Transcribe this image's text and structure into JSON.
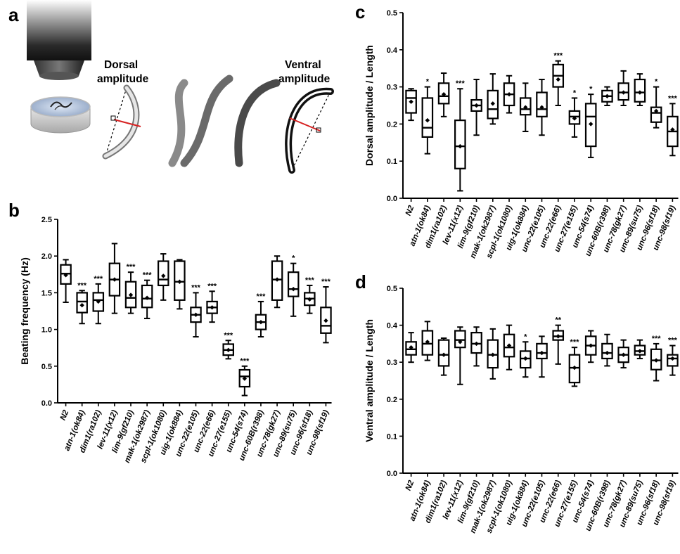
{
  "figure": {
    "panel_labels": [
      "a",
      "b",
      "c",
      "d"
    ],
    "illustration": {
      "dorsal_label_line1": "Dorsal",
      "dorsal_label_line2": "amplitude",
      "ventral_label_line1": "Ventral",
      "ventral_label_line2": "amplitude"
    }
  },
  "chart_data": [
    {
      "panel": "b",
      "type": "box",
      "ylabel": "Beating frequency (Hz)",
      "ylim": [
        0,
        2.5
      ],
      "yticks": [
        0.0,
        0.5,
        1.0,
        1.5,
        2.0,
        2.5
      ],
      "categories": [
        "N2",
        "atn-1(ok84)",
        "dim1(ra102)",
        "lev-11(x12)",
        "lim-9(gf210)",
        "mak-1(ok2987)",
        "scpl-1(ok1080)",
        "uig-1(ok884)",
        "unc-22(e105)",
        "unc-22(e66)",
        "unc-27(e155)",
        "unc-54(s74)",
        "unc-60B(r398)",
        "unc-78(gk27)",
        "unc-89(su75)",
        "unc-96(sf18)",
        "unc-98(sf19)"
      ],
      "boxes": [
        {
          "min": 1.37,
          "q1": 1.62,
          "median": 1.76,
          "q3": 1.88,
          "max": 1.95,
          "mean": 1.74,
          "sig": ""
        },
        {
          "min": 1.08,
          "q1": 1.23,
          "median": 1.38,
          "q3": 1.5,
          "max": 1.53,
          "mean": 1.33,
          "sig": "***"
        },
        {
          "min": 1.08,
          "q1": 1.25,
          "median": 1.4,
          "q3": 1.5,
          "max": 1.62,
          "mean": 1.38,
          "sig": "***"
        },
        {
          "min": 1.22,
          "q1": 1.46,
          "median": 1.68,
          "q3": 1.9,
          "max": 2.17,
          "mean": 1.68,
          "sig": ""
        },
        {
          "min": 1.22,
          "q1": 1.3,
          "median": 1.43,
          "q3": 1.65,
          "max": 1.78,
          "mean": 1.47,
          "sig": "***"
        },
        {
          "min": 1.15,
          "q1": 1.3,
          "median": 1.42,
          "q3": 1.6,
          "max": 1.67,
          "mean": 1.43,
          "sig": "***"
        },
        {
          "min": 1.4,
          "q1": 1.6,
          "median": 1.68,
          "q3": 1.93,
          "max": 2.03,
          "mean": 1.73,
          "sig": ""
        },
        {
          "min": 1.28,
          "q1": 1.4,
          "median": 1.65,
          "q3": 1.93,
          "max": 1.95,
          "mean": 1.65,
          "sig": ""
        },
        {
          "min": 0.9,
          "q1": 1.1,
          "median": 1.2,
          "q3": 1.3,
          "max": 1.5,
          "mean": 1.2,
          "sig": "***"
        },
        {
          "min": 1.1,
          "q1": 1.22,
          "median": 1.3,
          "q3": 1.38,
          "max": 1.52,
          "mean": 1.3,
          "sig": "***"
        },
        {
          "min": 0.6,
          "q1": 0.65,
          "median": 0.72,
          "q3": 0.8,
          "max": 0.85,
          "mean": 0.72,
          "sig": "***"
        },
        {
          "min": 0.1,
          "q1": 0.22,
          "median": 0.36,
          "q3": 0.45,
          "max": 0.5,
          "mean": 0.33,
          "sig": "***"
        },
        {
          "min": 0.9,
          "q1": 1.0,
          "median": 1.1,
          "q3": 1.2,
          "max": 1.38,
          "mean": 1.1,
          "sig": "***"
        },
        {
          "min": 1.3,
          "q1": 1.4,
          "median": 1.68,
          "q3": 1.93,
          "max": 2.0,
          "mean": 1.68,
          "sig": ""
        },
        {
          "min": 1.18,
          "q1": 1.45,
          "median": 1.55,
          "q3": 1.78,
          "max": 1.9,
          "mean": 1.55,
          "sig": "*"
        },
        {
          "min": 1.22,
          "q1": 1.33,
          "median": 1.42,
          "q3": 1.5,
          "max": 1.6,
          "mean": 1.41,
          "sig": "***"
        },
        {
          "min": 0.82,
          "q1": 0.95,
          "median": 1.05,
          "q3": 1.3,
          "max": 1.58,
          "mean": 1.12,
          "sig": "***"
        }
      ]
    },
    {
      "panel": "c",
      "type": "box",
      "ylabel": "Dorsal amplitude / Length",
      "ylim": [
        0,
        0.5
      ],
      "yticks": [
        0.0,
        0.1,
        0.2,
        0.3,
        0.4,
        0.5
      ],
      "categories": [
        "N2",
        "atn-1(ok84)",
        "dim1(ra102)",
        "lev-11(x12)",
        "lim-9(gf210)",
        "mak-1(ok2987)",
        "scpl-1(ok1080)",
        "uig-1(ok884)",
        "unc-22(e105)",
        "unc-22(e66)",
        "unc-27(e155)",
        "unc-54(s74)",
        "unc-60B(r398)",
        "unc-78(gk27)",
        "unc-89(su75)",
        "unc-96(sf18)",
        "unc-98(sf19)"
      ],
      "boxes": [
        {
          "min": 0.21,
          "q1": 0.23,
          "median": 0.27,
          "q3": 0.29,
          "max": 0.295,
          "mean": 0.26,
          "sig": ""
        },
        {
          "min": 0.12,
          "q1": 0.165,
          "median": 0.19,
          "q3": 0.27,
          "max": 0.3,
          "mean": 0.21,
          "sig": "*"
        },
        {
          "min": 0.22,
          "q1": 0.255,
          "median": 0.275,
          "q3": 0.31,
          "max": 0.337,
          "mean": 0.28,
          "sig": ""
        },
        {
          "min": 0.02,
          "q1": 0.08,
          "median": 0.14,
          "q3": 0.21,
          "max": 0.295,
          "mean": 0.14,
          "sig": "***"
        },
        {
          "min": 0.17,
          "q1": 0.235,
          "median": 0.25,
          "q3": 0.265,
          "max": 0.32,
          "mean": 0.25,
          "sig": ""
        },
        {
          "min": 0.2,
          "q1": 0.215,
          "median": 0.24,
          "q3": 0.29,
          "max": 0.335,
          "mean": 0.255,
          "sig": ""
        },
        {
          "min": 0.23,
          "q1": 0.25,
          "median": 0.28,
          "q3": 0.31,
          "max": 0.33,
          "mean": 0.28,
          "sig": ""
        },
        {
          "min": 0.18,
          "q1": 0.225,
          "median": 0.24,
          "q3": 0.27,
          "max": 0.31,
          "mean": 0.245,
          "sig": ""
        },
        {
          "min": 0.17,
          "q1": 0.22,
          "median": 0.24,
          "q3": 0.285,
          "max": 0.32,
          "mean": 0.245,
          "sig": ""
        },
        {
          "min": 0.25,
          "q1": 0.3,
          "median": 0.33,
          "q3": 0.36,
          "max": 0.37,
          "mean": 0.32,
          "sig": "***"
        },
        {
          "min": 0.165,
          "q1": 0.2,
          "median": 0.22,
          "q3": 0.235,
          "max": 0.27,
          "mean": 0.215,
          "sig": "*"
        },
        {
          "min": 0.11,
          "q1": 0.14,
          "median": 0.22,
          "q3": 0.255,
          "max": 0.28,
          "mean": 0.2,
          "sig": "*"
        },
        {
          "min": 0.25,
          "q1": 0.26,
          "median": 0.275,
          "q3": 0.29,
          "max": 0.3,
          "mean": 0.275,
          "sig": ""
        },
        {
          "min": 0.25,
          "q1": 0.265,
          "median": 0.285,
          "q3": 0.31,
          "max": 0.343,
          "mean": 0.285,
          "sig": ""
        },
        {
          "min": 0.25,
          "q1": 0.26,
          "median": 0.285,
          "q3": 0.32,
          "max": 0.335,
          "mean": 0.285,
          "sig": ""
        },
        {
          "min": 0.19,
          "q1": 0.205,
          "median": 0.23,
          "q3": 0.245,
          "max": 0.3,
          "mean": 0.235,
          "sig": "*"
        },
        {
          "min": 0.115,
          "q1": 0.14,
          "median": 0.18,
          "q3": 0.22,
          "max": 0.255,
          "mean": 0.185,
          "sig": "***"
        }
      ]
    },
    {
      "panel": "d",
      "type": "box",
      "ylabel": "Ventral amplitude / Length",
      "ylim": [
        0,
        0.5
      ],
      "yticks": [
        0.0,
        0.1,
        0.2,
        0.3,
        0.4,
        0.5
      ],
      "categories": [
        "N2",
        "atn-1(ok84)",
        "dim1(ra102)",
        "lev-11(x12)",
        "lim-9(gf210)",
        "mak-1(ok2987)",
        "scpl-1(ok1080)",
        "uig-1(ok884)",
        "unc-22(e105)",
        "unc-22(e66)",
        "unc-27(e155)",
        "unc-54(s74)",
        "unc-60B(r398)",
        "unc-78(gk27)",
        "unc-89(su75)",
        "unc-96(sf18)",
        "unc-98(sf19)"
      ],
      "boxes": [
        {
          "min": 0.3,
          "q1": 0.32,
          "median": 0.335,
          "q3": 0.355,
          "max": 0.38,
          "mean": 0.34,
          "sig": ""
        },
        {
          "min": 0.305,
          "q1": 0.32,
          "median": 0.35,
          "q3": 0.385,
          "max": 0.41,
          "mean": 0.355,
          "sig": ""
        },
        {
          "min": 0.265,
          "q1": 0.29,
          "median": 0.32,
          "q3": 0.36,
          "max": 0.365,
          "mean": 0.32,
          "sig": ""
        },
        {
          "min": 0.24,
          "q1": 0.34,
          "median": 0.36,
          "q3": 0.385,
          "max": 0.395,
          "mean": 0.355,
          "sig": ""
        },
        {
          "min": 0.29,
          "q1": 0.325,
          "median": 0.35,
          "q3": 0.38,
          "max": 0.395,
          "mean": 0.35,
          "sig": ""
        },
        {
          "min": 0.255,
          "q1": 0.285,
          "median": 0.32,
          "q3": 0.36,
          "max": 0.39,
          "mean": 0.32,
          "sig": ""
        },
        {
          "min": 0.28,
          "q1": 0.315,
          "median": 0.34,
          "q3": 0.375,
          "max": 0.4,
          "mean": 0.345,
          "sig": ""
        },
        {
          "min": 0.26,
          "q1": 0.285,
          "median": 0.31,
          "q3": 0.33,
          "max": 0.355,
          "mean": 0.31,
          "sig": "*"
        },
        {
          "min": 0.26,
          "q1": 0.31,
          "median": 0.325,
          "q3": 0.35,
          "max": 0.37,
          "mean": 0.325,
          "sig": ""
        },
        {
          "min": 0.295,
          "q1": 0.36,
          "median": 0.37,
          "q3": 0.385,
          "max": 0.4,
          "mean": 0.37,
          "sig": "**"
        },
        {
          "min": 0.235,
          "q1": 0.245,
          "median": 0.285,
          "q3": 0.32,
          "max": 0.34,
          "mean": 0.285,
          "sig": "***"
        },
        {
          "min": 0.3,
          "q1": 0.32,
          "median": 0.345,
          "q3": 0.37,
          "max": 0.385,
          "mean": 0.345,
          "sig": ""
        },
        {
          "min": 0.29,
          "q1": 0.31,
          "median": 0.325,
          "q3": 0.35,
          "max": 0.375,
          "mean": 0.325,
          "sig": ""
        },
        {
          "min": 0.285,
          "q1": 0.3,
          "median": 0.32,
          "q3": 0.34,
          "max": 0.36,
          "mean": 0.32,
          "sig": ""
        },
        {
          "min": 0.31,
          "q1": 0.32,
          "median": 0.33,
          "q3": 0.345,
          "max": 0.36,
          "mean": 0.33,
          "sig": ""
        },
        {
          "min": 0.25,
          "q1": 0.28,
          "median": 0.305,
          "q3": 0.335,
          "max": 0.35,
          "mean": 0.305,
          "sig": "***"
        },
        {
          "min": 0.265,
          "q1": 0.29,
          "median": 0.31,
          "q3": 0.32,
          "max": 0.345,
          "mean": 0.31,
          "sig": "***"
        }
      ]
    }
  ]
}
